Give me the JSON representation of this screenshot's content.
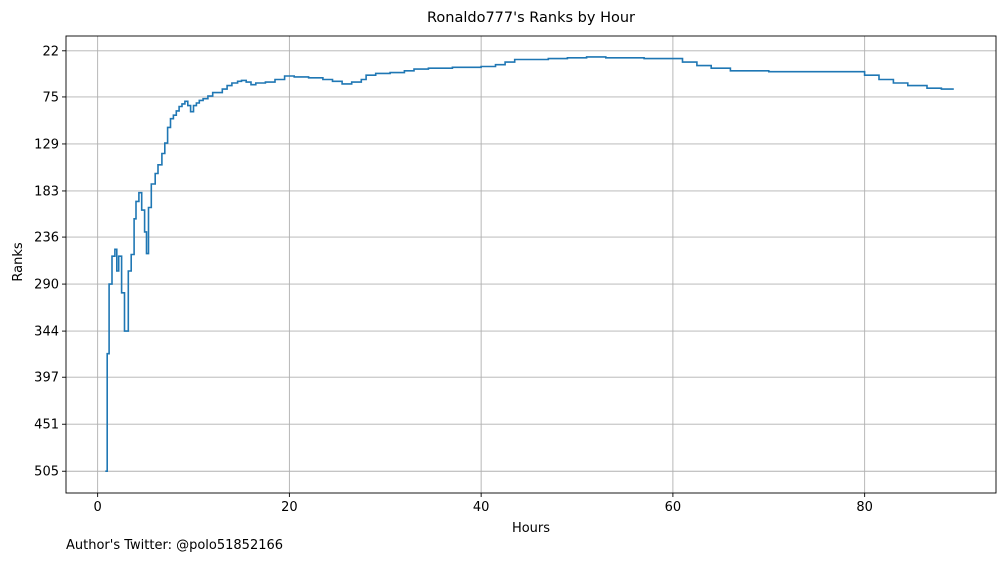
{
  "chart_data": {
    "type": "line",
    "title": "Ronaldo777's Ranks by Hour",
    "xlabel": "Hours",
    "ylabel": "Ranks",
    "xlim": [
      -3.3,
      93.7
    ],
    "ylim": [
      530,
      5
    ],
    "y_inverted": true,
    "grid": true,
    "line_style": "step",
    "color": "#1f77b4",
    "x_ticks": [
      0,
      20,
      40,
      60,
      80
    ],
    "y_ticks": [
      22,
      75,
      129,
      183,
      236,
      290,
      344,
      397,
      451,
      505
    ],
    "series": [
      {
        "name": "",
        "points": [
          [
            0.8,
            505
          ],
          [
            1.0,
            370
          ],
          [
            1.2,
            290
          ],
          [
            1.5,
            258
          ],
          [
            1.8,
            250
          ],
          [
            2.0,
            275
          ],
          [
            2.2,
            258
          ],
          [
            2.5,
            300
          ],
          [
            2.8,
            344
          ],
          [
            3.2,
            275
          ],
          [
            3.5,
            256
          ],
          [
            3.8,
            215
          ],
          [
            4.0,
            195
          ],
          [
            4.3,
            185
          ],
          [
            4.6,
            205
          ],
          [
            4.9,
            230
          ],
          [
            5.1,
            255
          ],
          [
            5.3,
            202
          ],
          [
            5.6,
            175
          ],
          [
            6.0,
            163
          ],
          [
            6.3,
            153
          ],
          [
            6.7,
            140
          ],
          [
            7.0,
            128
          ],
          [
            7.3,
            110
          ],
          [
            7.6,
            100
          ],
          [
            7.9,
            96
          ],
          [
            8.2,
            91
          ],
          [
            8.5,
            86
          ],
          [
            8.8,
            83
          ],
          [
            9.1,
            80
          ],
          [
            9.4,
            85
          ],
          [
            9.7,
            92
          ],
          [
            10.0,
            85
          ],
          [
            10.3,
            82
          ],
          [
            10.6,
            79
          ],
          [
            11.0,
            77
          ],
          [
            11.5,
            74
          ],
          [
            12.0,
            70
          ],
          [
            13.0,
            66
          ],
          [
            13.5,
            62
          ],
          [
            14.0,
            59
          ],
          [
            14.6,
            57
          ],
          [
            15.0,
            56
          ],
          [
            15.5,
            58
          ],
          [
            16.0,
            61
          ],
          [
            16.5,
            59
          ],
          [
            17.5,
            58
          ],
          [
            18.5,
            55
          ],
          [
            19.5,
            51
          ],
          [
            20.5,
            52
          ],
          [
            22.0,
            53
          ],
          [
            23.5,
            55
          ],
          [
            24.5,
            57
          ],
          [
            25.5,
            60
          ],
          [
            26.5,
            58
          ],
          [
            27.5,
            55
          ],
          [
            28.0,
            50
          ],
          [
            29.0,
            48
          ],
          [
            30.5,
            47
          ],
          [
            32.0,
            45
          ],
          [
            33.0,
            43
          ],
          [
            34.5,
            42
          ],
          [
            37.0,
            41
          ],
          [
            40.0,
            40
          ],
          [
            41.5,
            38
          ],
          [
            42.5,
            35
          ],
          [
            43.5,
            32
          ],
          [
            47.0,
            31
          ],
          [
            49.0,
            30
          ],
          [
            51.0,
            29
          ],
          [
            53.0,
            30
          ],
          [
            57.0,
            31
          ],
          [
            61.0,
            35
          ],
          [
            62.5,
            39
          ],
          [
            64.0,
            42
          ],
          [
            66.0,
            45
          ],
          [
            70.0,
            46
          ],
          [
            75.0,
            46
          ],
          [
            78.5,
            46
          ],
          [
            80.0,
            50
          ],
          [
            81.5,
            55
          ],
          [
            83.0,
            59
          ],
          [
            84.5,
            62
          ],
          [
            86.5,
            65
          ],
          [
            88.0,
            66
          ],
          [
            89.3,
            66
          ]
        ]
      }
    ]
  },
  "footer": {
    "credit": "Author's Twitter: @polo51852166"
  }
}
